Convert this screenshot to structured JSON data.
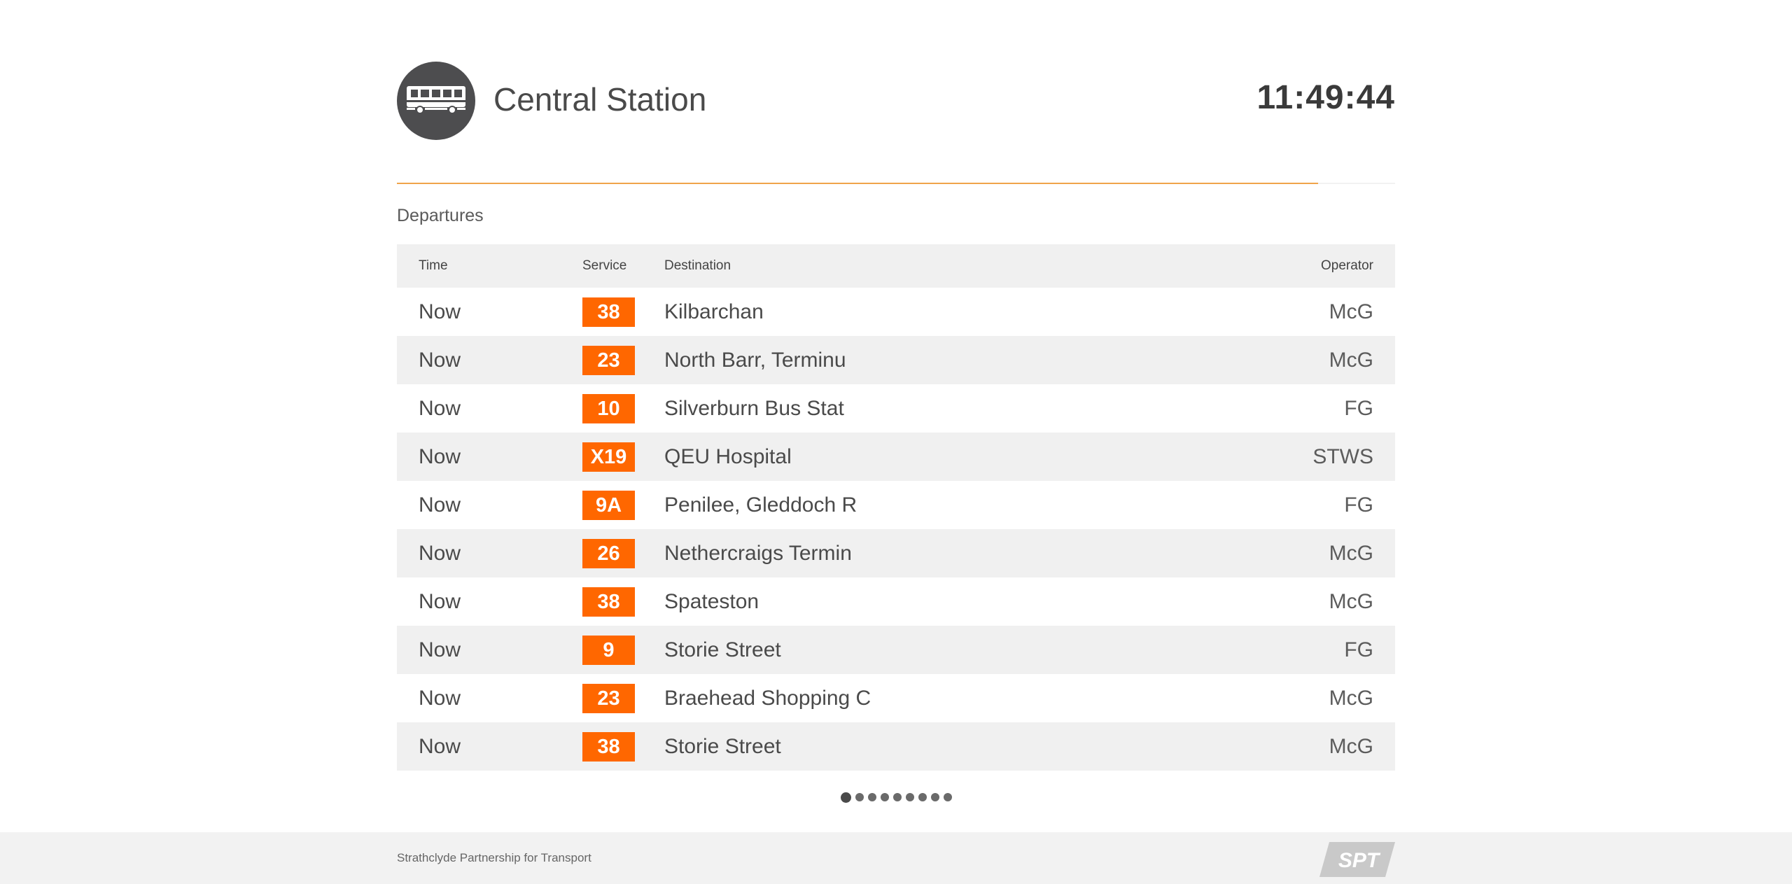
{
  "header": {
    "station_name": "Central Station",
    "clock": "11:49:44",
    "icon": "bus-icon"
  },
  "progress": {
    "fraction": 0.923,
    "color": "#f0a44a"
  },
  "section_title": "Departures",
  "table": {
    "columns": {
      "time": "Time",
      "service": "Service",
      "destination": "Destination",
      "operator": "Operator"
    },
    "rows": [
      {
        "time": "Now",
        "service": "38",
        "destination": "Kilbarchan",
        "operator": "McG"
      },
      {
        "time": "Now",
        "service": "23",
        "destination": "North Barr, Terminu",
        "operator": "McG"
      },
      {
        "time": "Now",
        "service": "10",
        "destination": "Silverburn Bus Stat",
        "operator": "FG"
      },
      {
        "time": "Now",
        "service": "X19",
        "destination": "QEU Hospital",
        "operator": "STWS"
      },
      {
        "time": "Now",
        "service": "9A",
        "destination": "Penilee, Gleddoch R",
        "operator": "FG"
      },
      {
        "time": "Now",
        "service": "26",
        "destination": "Nethercraigs Termin",
        "operator": "McG"
      },
      {
        "time": "Now",
        "service": "38",
        "destination": "Spateston",
        "operator": "McG"
      },
      {
        "time": "Now",
        "service": "9",
        "destination": "Storie Street",
        "operator": "FG"
      },
      {
        "time": "Now",
        "service": "23",
        "destination": "Braehead Shopping C",
        "operator": "McG"
      },
      {
        "time": "Now",
        "service": "38",
        "destination": "Storie Street",
        "operator": "McG"
      }
    ]
  },
  "pagination": {
    "pages": 9,
    "current": 1
  },
  "footer": {
    "text": "Strathclyde Partnership for Transport",
    "logo_text": "SPT"
  },
  "colors": {
    "service_badge": "#ff6700",
    "bus_badge": "#4d4d4f",
    "row_alt": "#f0f0f0"
  }
}
